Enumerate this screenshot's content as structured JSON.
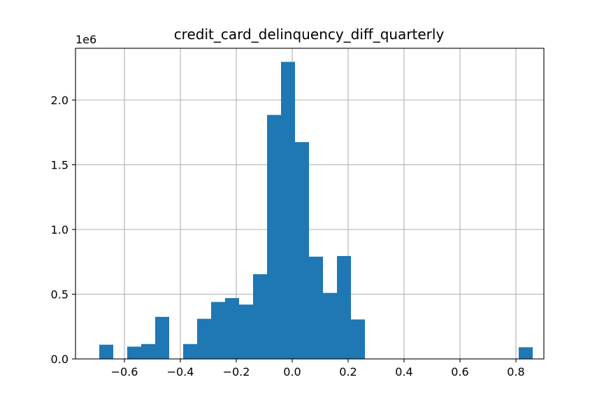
{
  "chart_data": {
    "type": "bar",
    "title": "credit_card_delinquency_diff_quarterly",
    "xlabel": "",
    "ylabel": "",
    "y_offset_label": "1e6",
    "grid": true,
    "legend": "none",
    "color": "#1f77b4",
    "xlim": [
      -0.775,
      0.9
    ],
    "ylim": [
      0,
      2.4
    ],
    "x_ticks": [
      -0.6,
      -0.4,
      -0.2,
      0.0,
      0.2,
      0.4,
      0.6,
      0.8
    ],
    "x_tick_labels": [
      "−0.6",
      "−0.4",
      "−0.2",
      "0.0",
      "0.2",
      "0.4",
      "0.6",
      "0.8"
    ],
    "y_ticks": [
      0.0,
      0.5,
      1.0,
      1.5,
      2.0
    ],
    "y_tick_labels": [
      "0.0",
      "0.5",
      "1.0",
      "1.5",
      "2.0"
    ],
    "bins": [
      {
        "x0": -0.69,
        "x1": -0.64,
        "value": 0.11
      },
      {
        "x0": -0.64,
        "x1": -0.59,
        "value": 0.0
      },
      {
        "x0": -0.59,
        "x1": -0.54,
        "value": 0.095
      },
      {
        "x0": -0.54,
        "x1": -0.49,
        "value": 0.115
      },
      {
        "x0": -0.49,
        "x1": -0.44,
        "value": 0.325
      },
      {
        "x0": -0.44,
        "x1": -0.39,
        "value": 0.0
      },
      {
        "x0": -0.39,
        "x1": -0.34,
        "value": 0.115
      },
      {
        "x0": -0.34,
        "x1": -0.29,
        "value": 0.31
      },
      {
        "x0": -0.29,
        "x1": -0.24,
        "value": 0.44
      },
      {
        "x0": -0.24,
        "x1": -0.19,
        "value": 0.47
      },
      {
        "x0": -0.19,
        "x1": -0.14,
        "value": 0.42
      },
      {
        "x0": -0.14,
        "x1": -0.09,
        "value": 0.655
      },
      {
        "x0": -0.09,
        "x1": -0.04,
        "value": 1.885
      },
      {
        "x0": -0.04,
        "x1": 0.01,
        "value": 2.295
      },
      {
        "x0": 0.01,
        "x1": 0.06,
        "value": 1.675
      },
      {
        "x0": 0.06,
        "x1": 0.11,
        "value": 0.79
      },
      {
        "x0": 0.11,
        "x1": 0.16,
        "value": 0.51
      },
      {
        "x0": 0.16,
        "x1": 0.21,
        "value": 0.795
      },
      {
        "x0": 0.21,
        "x1": 0.26,
        "value": 0.305
      },
      {
        "x0": 0.81,
        "x1": 0.86,
        "value": 0.09
      }
    ]
  }
}
